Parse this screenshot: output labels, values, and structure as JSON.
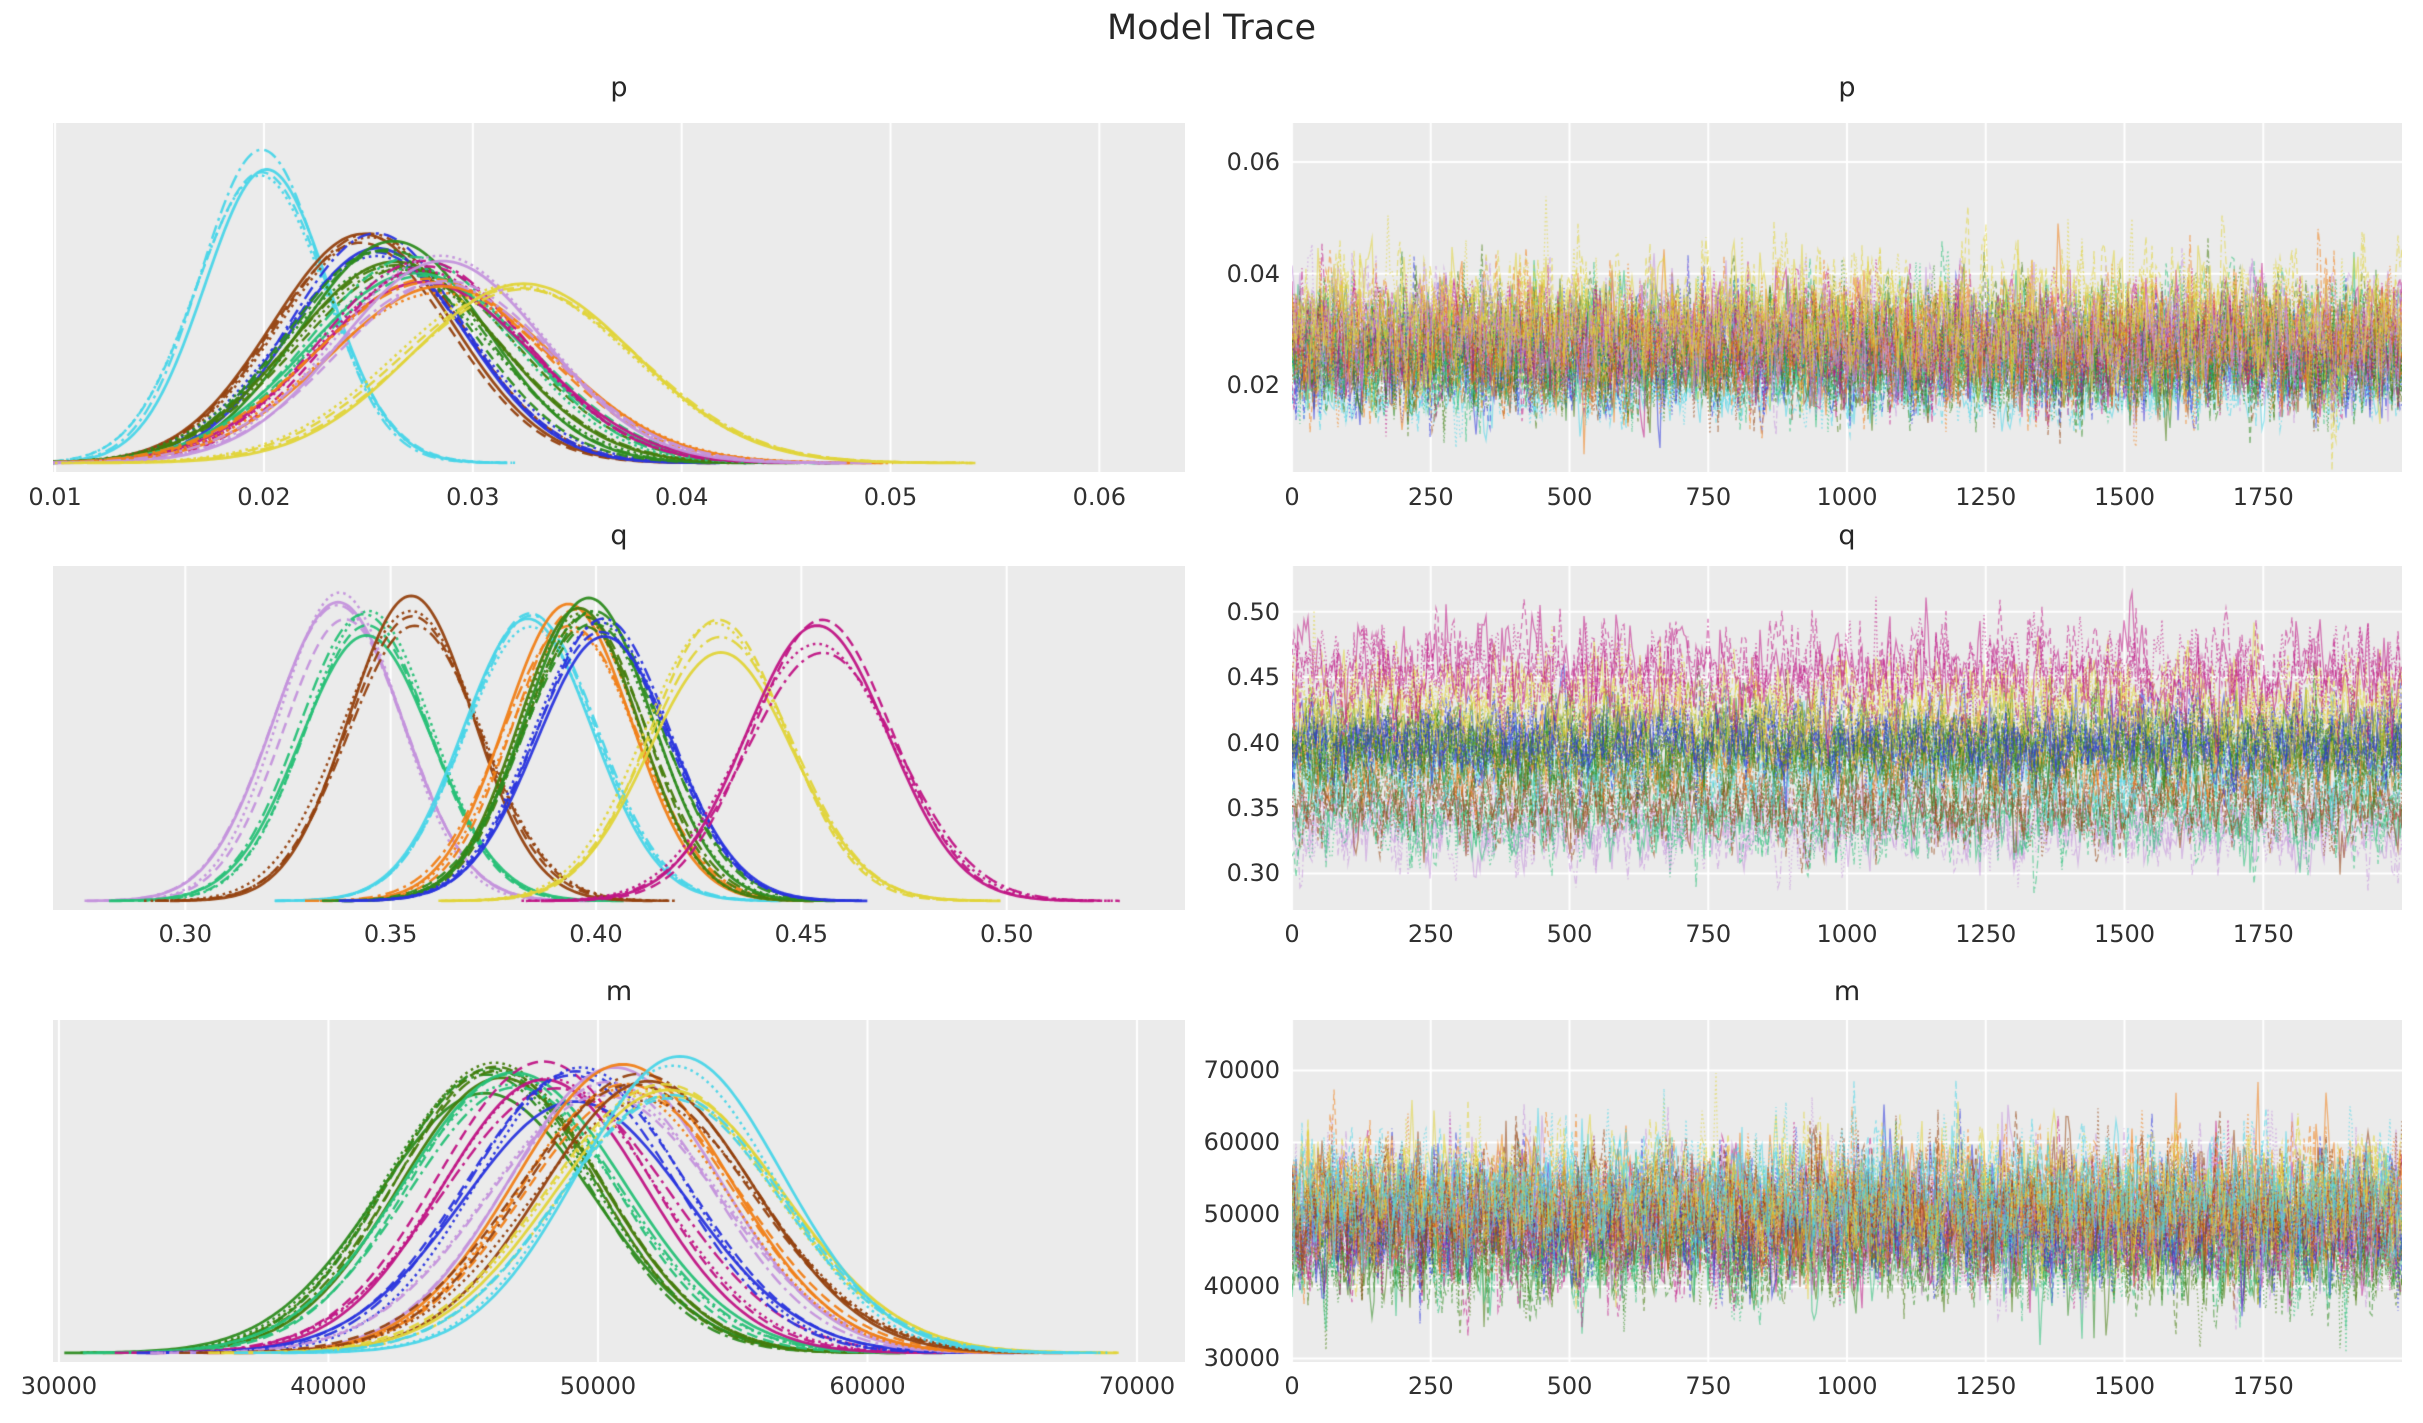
{
  "figure": {
    "title": "Model Trace",
    "background": "#ffffff",
    "axes_background": "#ebebeb",
    "grid_color": "#ffffff",
    "text_color": "#2e2e2e"
  },
  "groups": [
    {
      "name": "cyan",
      "color": "#4ad5e8"
    },
    {
      "name": "brown",
      "color": "#93410f"
    },
    {
      "name": "blue",
      "color": "#2a35dd"
    },
    {
      "name": "forest-green",
      "color": "#2d8b1f"
    },
    {
      "name": "dark-green",
      "color": "#457c0d"
    },
    {
      "name": "medium-sea-green",
      "color": "#28c077"
    },
    {
      "name": "orange",
      "color": "#f08018"
    },
    {
      "name": "yellow",
      "color": "#e0d43a"
    },
    {
      "name": "magenta",
      "color": "#c01585"
    },
    {
      "name": "plum",
      "color": "#c493dc"
    }
  ],
  "chains": {
    "per_group": 4,
    "line_styles": [
      "solid",
      "dashed",
      "dotted",
      "dashdot"
    ]
  },
  "chart_data": {
    "suptitle": "Model Trace",
    "layout": "3 rows x 2 cols; left column kernel-density estimates, right column MCMC sample traces",
    "params": [
      {
        "param": "p",
        "kde": {
          "type": "kde",
          "xlim": [
            0.0099,
            0.0641
          ],
          "xticks": [
            0.01,
            0.02,
            0.03,
            0.04,
            0.05,
            0.06
          ],
          "xtick_labels": [
            "0.01",
            "0.02",
            "0.03",
            "0.04",
            "0.05",
            "0.06"
          ],
          "series": [
            {
              "group": "cyan",
              "mean": 0.02,
              "sd": 0.003
            },
            {
              "group": "brown",
              "mean": 0.0249,
              "sd": 0.0042
            },
            {
              "group": "blue",
              "mean": 0.0253,
              "sd": 0.0044
            },
            {
              "group": "forest-green",
              "mean": 0.0259,
              "sd": 0.0047
            },
            {
              "group": "dark-green",
              "mean": 0.0266,
              "sd": 0.005
            },
            {
              "group": "medium-sea-green",
              "mean": 0.0273,
              "sd": 0.005
            },
            {
              "group": "magenta",
              "mean": 0.0279,
              "sd": 0.005
            },
            {
              "group": "orange",
              "mean": 0.0282,
              "sd": 0.0053
            },
            {
              "group": "plum",
              "mean": 0.0286,
              "sd": 0.0051
            },
            {
              "group": "yellow",
              "mean": 0.0321,
              "sd": 0.0057
            }
          ]
        },
        "trace": {
          "type": "trace",
          "xlim": [
            0,
            2000
          ],
          "ylim": [
            0.0045,
            0.067
          ],
          "xticks": [
            0,
            250,
            500,
            750,
            1000,
            1250,
            1500,
            1750
          ],
          "xtick_labels": [
            "0",
            "250",
            "500",
            "750",
            "1000",
            "1250",
            "1500",
            "1750"
          ],
          "yticks": [
            0.02,
            0.04,
            0.06
          ],
          "ytick_labels": [
            "0.02",
            "0.04",
            "0.06"
          ]
        }
      },
      {
        "param": "q",
        "kde": {
          "type": "kde",
          "xlim": [
            0.2678,
            0.5434
          ],
          "xticks": [
            0.3,
            0.35,
            0.4,
            0.45,
            0.5
          ],
          "xtick_labels": [
            "0.30",
            "0.35",
            "0.40",
            "0.45",
            "0.50"
          ],
          "series": [
            {
              "group": "plum",
              "mean": 0.338,
              "sd": 0.0155
            },
            {
              "group": "medium-sea-green",
              "mean": 0.344,
              "sd": 0.016
            },
            {
              "group": "brown",
              "mean": 0.356,
              "sd": 0.016
            },
            {
              "group": "cyan",
              "mean": 0.384,
              "sd": 0.0155
            },
            {
              "group": "orange",
              "mean": 0.394,
              "sd": 0.016
            },
            {
              "group": "dark-green",
              "mean": 0.3965,
              "sd": 0.0155
            },
            {
              "group": "forest-green",
              "mean": 0.399,
              "sd": 0.016
            },
            {
              "group": "blue",
              "mean": 0.402,
              "sd": 0.0155
            },
            {
              "group": "yellow",
              "mean": 0.43,
              "sd": 0.017
            },
            {
              "group": "magenta",
              "mean": 0.4545,
              "sd": 0.018
            }
          ]
        },
        "trace": {
          "type": "trace",
          "xlim": [
            0,
            2000
          ],
          "ylim": [
            0.272,
            0.535
          ],
          "xticks": [
            0,
            250,
            500,
            750,
            1000,
            1250,
            1500,
            1750
          ],
          "xtick_labels": [
            "0",
            "250",
            "500",
            "750",
            "1000",
            "1250",
            "1500",
            "1750"
          ],
          "yticks": [
            0.3,
            0.35,
            0.4,
            0.45,
            0.5
          ],
          "ytick_labels": [
            "0.30",
            "0.35",
            "0.40",
            "0.45",
            "0.50"
          ]
        }
      },
      {
        "param": "m",
        "kde": {
          "type": "kde",
          "xlim": [
            29780,
            71780
          ],
          "xticks": [
            30000,
            40000,
            50000,
            60000,
            70000
          ],
          "xtick_labels": [
            "30000",
            "40000",
            "50000",
            "60000",
            "70000"
          ],
          "series": [
            {
              "group": "forest-green",
              "mean": 45800,
              "sd": 3800
            },
            {
              "group": "dark-green",
              "mean": 46300,
              "sd": 3900
            },
            {
              "group": "medium-sea-green",
              "mean": 46900,
              "sd": 3900
            },
            {
              "group": "magenta",
              "mean": 48200,
              "sd": 4000
            },
            {
              "group": "blue",
              "mean": 49300,
              "sd": 4000
            },
            {
              "group": "plum",
              "mean": 50400,
              "sd": 4100
            },
            {
              "group": "orange",
              "mean": 51000,
              "sd": 4100
            },
            {
              "group": "brown",
              "mean": 51600,
              "sd": 4100
            },
            {
              "group": "yellow",
              "mean": 52400,
              "sd": 4200
            },
            {
              "group": "cyan",
              "mean": 52900,
              "sd": 4000
            }
          ]
        },
        "trace": {
          "type": "trace",
          "xlim": [
            0,
            2000
          ],
          "ylim": [
            29500,
            77000
          ],
          "xticks": [
            0,
            250,
            500,
            750,
            1000,
            1250,
            1500,
            1750
          ],
          "xtick_labels": [
            "0",
            "250",
            "500",
            "750",
            "1000",
            "1250",
            "1500",
            "1750"
          ],
          "yticks": [
            30000,
            40000,
            50000,
            60000,
            70000
          ],
          "ytick_labels": [
            "30000",
            "40000",
            "50000",
            "60000",
            "70000"
          ]
        }
      }
    ]
  }
}
